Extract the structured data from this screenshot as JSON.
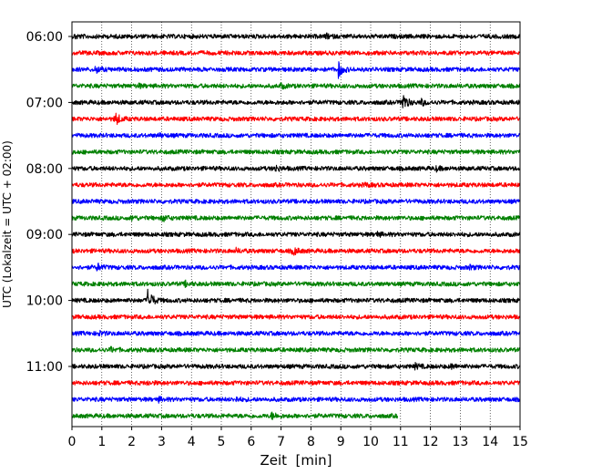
{
  "chart_data": {
    "type": "line",
    "title": "",
    "xlabel": "Zeit  [min]",
    "ylabel": "UTC (Lokalzeit = UTC + 02:00)",
    "xlim": [
      0,
      15
    ],
    "x_ticks": [
      0,
      1,
      2,
      3,
      4,
      5,
      6,
      7,
      8,
      9,
      10,
      11,
      12,
      13,
      14,
      15
    ],
    "y_tick_labels": [
      "06:00",
      "07:00",
      "08:00",
      "09:00",
      "10:00",
      "11:00"
    ],
    "grid_x": true,
    "trace_colors": [
      "#000000",
      "#ff0000",
      "#0000ff",
      "#008000"
    ],
    "row_interval_minutes": 15,
    "rows": [
      {
        "time": "06:00",
        "color": "#000000",
        "end_min": 15,
        "events": [
          [
            0.1,
            0.3
          ],
          [
            8.5,
            0.35
          ]
        ]
      },
      {
        "time": "06:15",
        "color": "#ff0000",
        "end_min": 15,
        "events": []
      },
      {
        "time": "06:30",
        "color": "#0000ff",
        "end_min": 15,
        "events": [
          [
            0.8,
            0.55
          ],
          [
            8.9,
            1.6
          ]
        ]
      },
      {
        "time": "06:45",
        "color": "#008000",
        "end_min": 15,
        "events": [
          [
            2.2,
            0.3
          ],
          [
            7.0,
            0.35
          ]
        ]
      },
      {
        "time": "07:00",
        "color": "#000000",
        "end_min": 15,
        "events": [
          [
            11.05,
            1.9
          ],
          [
            11.7,
            0.45
          ]
        ]
      },
      {
        "time": "07:15",
        "color": "#ff0000",
        "end_min": 15,
        "events": [
          [
            1.45,
            1.2
          ]
        ]
      },
      {
        "time": "07:30",
        "color": "#0000ff",
        "end_min": 15,
        "events": [
          [
            2.9,
            0.3
          ]
        ]
      },
      {
        "time": "07:45",
        "color": "#008000",
        "end_min": 15,
        "events": []
      },
      {
        "time": "08:00",
        "color": "#000000",
        "end_min": 15,
        "events": [
          [
            6.8,
            0.5
          ],
          [
            12.2,
            0.3
          ]
        ]
      },
      {
        "time": "08:15",
        "color": "#ff0000",
        "end_min": 15,
        "events": [
          [
            9.8,
            0.3
          ]
        ]
      },
      {
        "time": "08:30",
        "color": "#0000ff",
        "end_min": 15,
        "events": []
      },
      {
        "time": "08:45",
        "color": "#008000",
        "end_min": 15,
        "events": [
          [
            2.0,
            0.35
          ],
          [
            3.05,
            0.5
          ]
        ]
      },
      {
        "time": "09:00",
        "color": "#000000",
        "end_min": 15,
        "events": [
          [
            10.2,
            0.35
          ]
        ]
      },
      {
        "time": "09:15",
        "color": "#ff0000",
        "end_min": 15,
        "events": [
          [
            5.5,
            0.3
          ],
          [
            7.4,
            0.75
          ]
        ]
      },
      {
        "time": "09:30",
        "color": "#0000ff",
        "end_min": 15,
        "events": [
          [
            0.85,
            0.6
          ],
          [
            13.3,
            0.3
          ]
        ]
      },
      {
        "time": "09:45",
        "color": "#008000",
        "end_min": 15,
        "events": [
          [
            3.8,
            0.35
          ]
        ]
      },
      {
        "time": "10:00",
        "color": "#000000",
        "end_min": 15,
        "events": [
          [
            2.55,
            2.2
          ]
        ]
      },
      {
        "time": "10:15",
        "color": "#ff0000",
        "end_min": 15,
        "events": []
      },
      {
        "time": "10:30",
        "color": "#0000ff",
        "end_min": 15,
        "events": [
          [
            0.9,
            0.3
          ]
        ]
      },
      {
        "time": "10:45",
        "color": "#008000",
        "end_min": 15,
        "events": [
          [
            1.3,
            0.35
          ]
        ]
      },
      {
        "time": "11:00",
        "color": "#000000",
        "end_min": 15,
        "events": [
          [
            11.5,
            0.4
          ],
          [
            12.7,
            0.35
          ]
        ]
      },
      {
        "time": "11:15",
        "color": "#ff0000",
        "end_min": 15,
        "events": [
          [
            2.5,
            0.3
          ]
        ]
      },
      {
        "time": "11:30",
        "color": "#0000ff",
        "end_min": 15,
        "events": [
          [
            2.9,
            0.3
          ],
          [
            5.5,
            0.3
          ]
        ]
      },
      {
        "time": "11:45",
        "color": "#008000",
        "end_min": 10.9,
        "events": [
          [
            6.7,
            0.55
          ]
        ]
      }
    ]
  }
}
